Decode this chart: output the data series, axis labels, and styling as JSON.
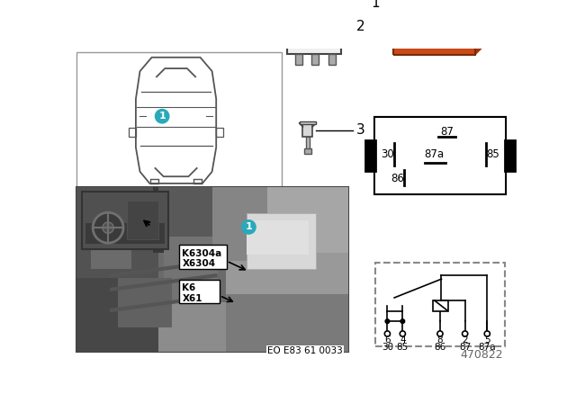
{
  "bg_color": "#ffffff",
  "teal_color": "#29AABB",
  "relay_orange": "#C94A1A",
  "relay_orange_dark": "#A03510",
  "relay_orange_light": "#D96030",
  "pin_metal": "#999999",
  "pin_metal_dark": "#666666",
  "black": "#111111",
  "gray_box": "#444444",
  "light_gray": "#cccccc",
  "car_line": "#555555",
  "photo_bg": "#6a6a6a",
  "photo_dark": "#3a3a3a",
  "photo_light": "#909090",
  "inset_bg": "#555555",
  "diagram_code": "EO E83 61 0033",
  "part_number": "470822",
  "pin_labels_row1": [
    "6",
    "4",
    "8",
    "2",
    "5"
  ],
  "pin_labels_row2": [
    "30",
    "85",
    "86",
    "87",
    "87a"
  ],
  "connector_labels": [
    "K6304a",
    "X6304",
    "K6",
    "X61"
  ]
}
